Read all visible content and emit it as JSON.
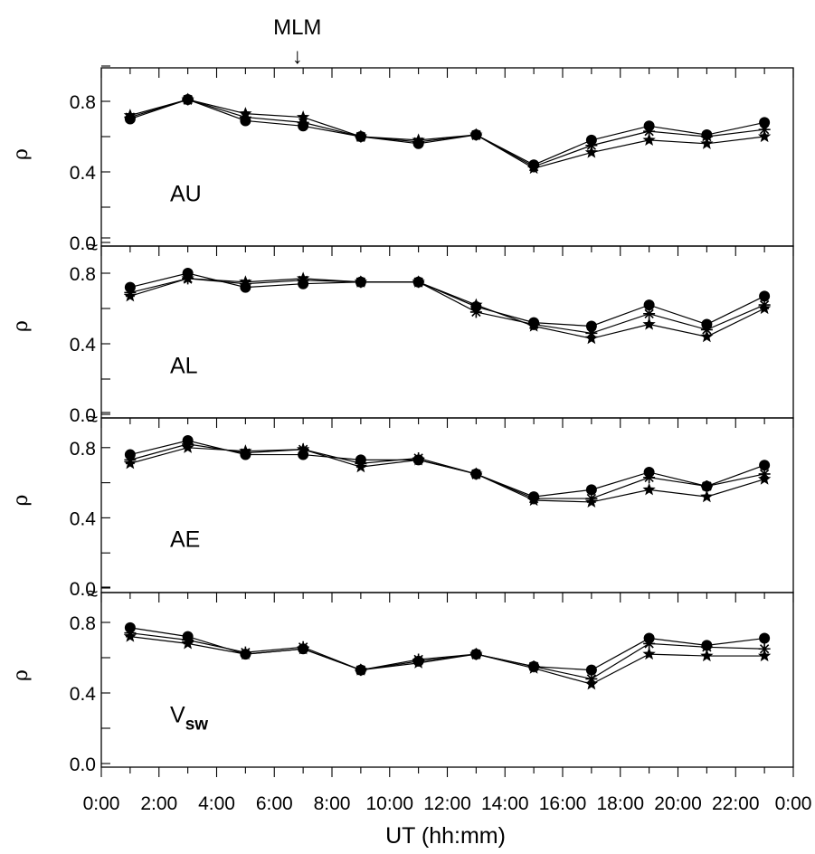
{
  "figure": {
    "annotation": "MLM",
    "annotation_arrow": "↓",
    "annotation_x_hours": 6.8
  },
  "chart_data": {
    "type": "line",
    "x_axis": {
      "label": "UT (hh:mm)",
      "range_hours": [
        0,
        24
      ],
      "tick_hours": [
        0,
        2,
        4,
        6,
        8,
        10,
        12,
        14,
        16,
        18,
        20,
        22,
        24
      ],
      "tick_labels": [
        "0:00",
        "2:00",
        "4:00",
        "6:00",
        "8:00",
        "10:00",
        "12:00",
        "14:00",
        "16:00",
        "18:00",
        "20:00",
        "22:00",
        "0:00"
      ]
    },
    "y_axis": {
      "label": "ρ",
      "ylim": [
        0,
        1.0
      ],
      "tick_values": [
        0.0,
        0.4,
        0.8
      ],
      "tick_labels": [
        "0.0",
        "0.4",
        "0.8"
      ]
    },
    "x_hours": [
      1,
      3,
      5,
      7,
      9,
      11,
      13,
      15,
      17,
      19,
      21,
      23
    ],
    "panels": [
      {
        "label": "AU",
        "label_sub": "",
        "series": [
          {
            "marker": "circle",
            "values": [
              0.7,
              0.81,
              0.69,
              0.66,
              0.6,
              0.56,
              0.61,
              0.44,
              0.58,
              0.66,
              0.61,
              0.68
            ]
          },
          {
            "marker": "asterisk",
            "values": [
              0.71,
              0.81,
              0.71,
              0.68,
              0.6,
              0.57,
              0.61,
              0.43,
              0.55,
              0.63,
              0.6,
              0.64
            ]
          },
          {
            "marker": "star",
            "values": [
              0.72,
              0.81,
              0.73,
              0.71,
              0.6,
              0.58,
              0.61,
              0.42,
              0.51,
              0.58,
              0.56,
              0.6
            ]
          }
        ]
      },
      {
        "label": "AL",
        "label_sub": "",
        "series": [
          {
            "marker": "circle",
            "values": [
              0.72,
              0.8,
              0.72,
              0.74,
              0.75,
              0.75,
              0.61,
              0.52,
              0.5,
              0.62,
              0.51,
              0.67
            ]
          },
          {
            "marker": "asterisk",
            "values": [
              0.69,
              0.77,
              0.74,
              0.76,
              0.75,
              0.75,
              0.58,
              0.51,
              0.46,
              0.57,
              0.48,
              0.62
            ]
          },
          {
            "marker": "star",
            "values": [
              0.67,
              0.77,
              0.75,
              0.77,
              0.75,
              0.75,
              0.62,
              0.5,
              0.43,
              0.51,
              0.44,
              0.6
            ]
          }
        ]
      },
      {
        "label": "AE",
        "label_sub": "",
        "series": [
          {
            "marker": "circle",
            "values": [
              0.76,
              0.84,
              0.76,
              0.76,
              0.73,
              0.73,
              0.65,
              0.52,
              0.56,
              0.66,
              0.58,
              0.7
            ]
          },
          {
            "marker": "asterisk",
            "values": [
              0.73,
              0.82,
              0.77,
              0.79,
              0.71,
              0.74,
              0.65,
              0.51,
              0.51,
              0.63,
              0.58,
              0.65
            ]
          },
          {
            "marker": "star",
            "values": [
              0.71,
              0.8,
              0.78,
              0.79,
              0.69,
              0.73,
              0.65,
              0.5,
              0.49,
              0.56,
              0.52,
              0.62
            ]
          }
        ]
      },
      {
        "label": "V",
        "label_sub": "sw",
        "series": [
          {
            "marker": "circle",
            "values": [
              0.77,
              0.72,
              0.62,
              0.65,
              0.53,
              0.58,
              0.62,
              0.55,
              0.53,
              0.71,
              0.67,
              0.71
            ]
          },
          {
            "marker": "asterisk",
            "values": [
              0.74,
              0.7,
              0.63,
              0.66,
              0.53,
              0.59,
              0.62,
              0.55,
              0.48,
              0.68,
              0.66,
              0.65
            ]
          },
          {
            "marker": "star",
            "values": [
              0.72,
              0.68,
              0.62,
              0.65,
              0.53,
              0.57,
              0.62,
              0.54,
              0.45,
              0.62,
              0.61,
              0.61
            ]
          }
        ]
      }
    ]
  }
}
